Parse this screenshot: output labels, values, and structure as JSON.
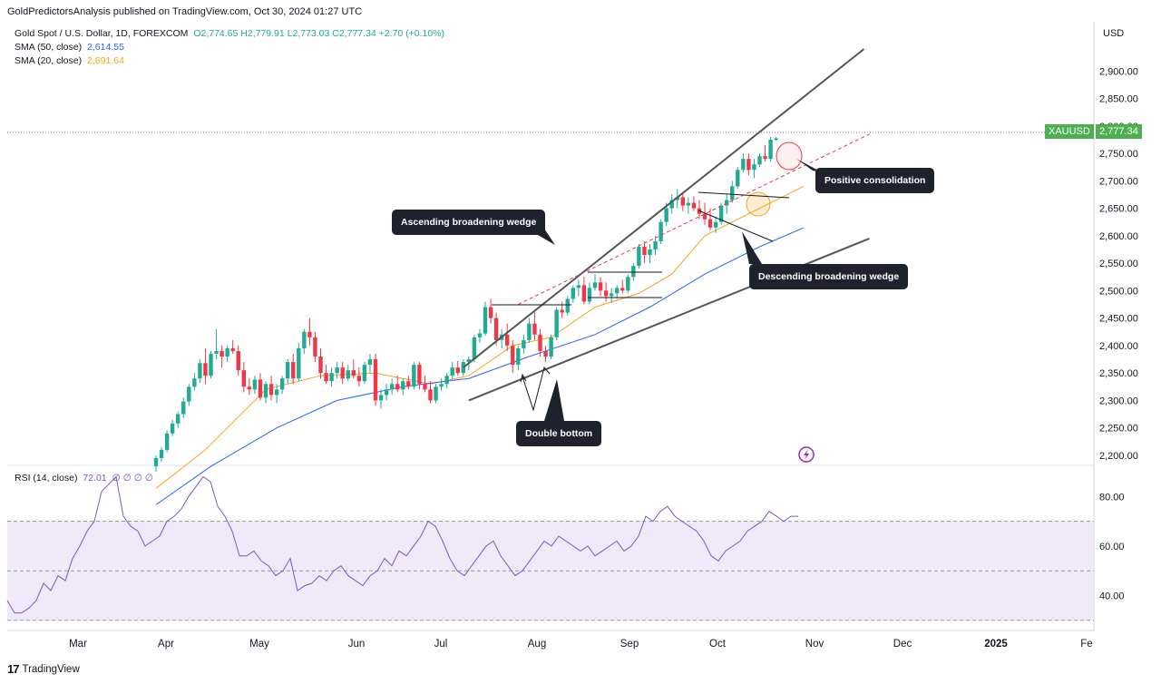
{
  "header": {
    "text": "GoldPredictorsAnalysis published on TradingView.com, Oct 30, 2024 01:27 UTC"
  },
  "legend": {
    "symbol": "Gold Spot / U.S. Dollar, 1D, FOREXCOM",
    "ohlc": "O2,774.65  H2,779.91  L2,773.03  C2,777.34  +2.70 (+0.10%)",
    "sma50_label": "SMA (50, close)",
    "sma50_value": "2,614.55",
    "sma20_label": "SMA (20, close)",
    "sma20_value": "2,691.64",
    "rsi_label": "RSI (14, close)",
    "rsi_value": "72.01",
    "rsi_extra": "∅ ∅ ∅ ∅"
  },
  "colors": {
    "up": "#22ab94",
    "down": "#f23645",
    "sma50": "#2962ff",
    "sma20": "#f7a21b",
    "rsi": "#7e57c2",
    "rsi_band": "#efe9f8",
    "badge": "#4caf50"
  },
  "axis": {
    "currency": "USD",
    "price_ticks": [
      "2,900.00",
      "2,850.00",
      "2,800.00",
      "2,750.00",
      "2,700.00",
      "2,650.00",
      "2,600.00",
      "2,550.00",
      "2,500.00",
      "2,450.00",
      "2,400.00",
      "2,350.00",
      "2,300.00",
      "2,250.00",
      "2,200.00"
    ],
    "rsi_ticks": [
      "80.00",
      "60.00",
      "40.00"
    ],
    "months": [
      "Mar",
      "Apr",
      "May",
      "Jun",
      "Jul",
      "Aug",
      "Sep",
      "Oct",
      "Nov",
      "Dec",
      "2025",
      "Fe"
    ]
  },
  "badges": {
    "symbol": "XAUUSD",
    "price": "2,777.34"
  },
  "annotations": {
    "ascending": "Ascending broadening wedge",
    "descending": "Descending broadening wedge",
    "positive": "Positive consolidation",
    "double_bottom": "Double bottom"
  },
  "footer": {
    "brand": "TradingView"
  },
  "chart_data": {
    "type": "candlestick",
    "symbol": "XAUUSD",
    "interval": "1D",
    "price_range": [
      2190,
      2960
    ],
    "rsi_range": [
      27,
      90
    ],
    "rsi_levels": [
      70,
      50,
      30
    ],
    "candles": [
      {
        "o": 2180,
        "h": 2200,
        "l": 2170,
        "c": 2195
      },
      {
        "o": 2195,
        "h": 2215,
        "l": 2188,
        "c": 2210
      },
      {
        "o": 2210,
        "h": 2245,
        "l": 2205,
        "c": 2240
      },
      {
        "o": 2240,
        "h": 2265,
        "l": 2235,
        "c": 2258
      },
      {
        "o": 2258,
        "h": 2280,
        "l": 2250,
        "c": 2275
      },
      {
        "o": 2275,
        "h": 2305,
        "l": 2268,
        "c": 2298
      },
      {
        "o": 2298,
        "h": 2330,
        "l": 2290,
        "c": 2325
      },
      {
        "o": 2325,
        "h": 2350,
        "l": 2318,
        "c": 2340
      },
      {
        "o": 2340,
        "h": 2375,
        "l": 2332,
        "c": 2368
      },
      {
        "o": 2368,
        "h": 2395,
        "l": 2330,
        "c": 2345
      },
      {
        "o": 2345,
        "h": 2390,
        "l": 2340,
        "c": 2385
      },
      {
        "o": 2385,
        "h": 2430,
        "l": 2375,
        "c": 2390
      },
      {
        "o": 2390,
        "h": 2400,
        "l": 2360,
        "c": 2380
      },
      {
        "o": 2380,
        "h": 2400,
        "l": 2370,
        "c": 2395
      },
      {
        "o": 2395,
        "h": 2410,
        "l": 2385,
        "c": 2390
      },
      {
        "o": 2390,
        "h": 2400,
        "l": 2345,
        "c": 2355
      },
      {
        "o": 2355,
        "h": 2370,
        "l": 2315,
        "c": 2325
      },
      {
        "o": 2325,
        "h": 2340,
        "l": 2310,
        "c": 2320
      },
      {
        "o": 2320,
        "h": 2345,
        "l": 2312,
        "c": 2338
      },
      {
        "o": 2338,
        "h": 2350,
        "l": 2300,
        "c": 2305
      },
      {
        "o": 2305,
        "h": 2335,
        "l": 2295,
        "c": 2330
      },
      {
        "o": 2330,
        "h": 2345,
        "l": 2300,
        "c": 2310
      },
      {
        "o": 2310,
        "h": 2330,
        "l": 2295,
        "c": 2320
      },
      {
        "o": 2320,
        "h": 2345,
        "l": 2312,
        "c": 2340
      },
      {
        "o": 2340,
        "h": 2375,
        "l": 2330,
        "c": 2370
      },
      {
        "o": 2370,
        "h": 2385,
        "l": 2330,
        "c": 2340
      },
      {
        "o": 2340,
        "h": 2405,
        "l": 2335,
        "c": 2395
      },
      {
        "o": 2395,
        "h": 2430,
        "l": 2385,
        "c": 2425
      },
      {
        "o": 2425,
        "h": 2450,
        "l": 2400,
        "c": 2415
      },
      {
        "o": 2415,
        "h": 2425,
        "l": 2370,
        "c": 2380
      },
      {
        "o": 2380,
        "h": 2395,
        "l": 2340,
        "c": 2350
      },
      {
        "o": 2350,
        "h": 2365,
        "l": 2330,
        "c": 2335
      },
      {
        "o": 2335,
        "h": 2360,
        "l": 2325,
        "c": 2350
      },
      {
        "o": 2350,
        "h": 2370,
        "l": 2340,
        "c": 2360
      },
      {
        "o": 2360,
        "h": 2370,
        "l": 2330,
        "c": 2340
      },
      {
        "o": 2340,
        "h": 2365,
        "l": 2335,
        "c": 2355
      },
      {
        "o": 2355,
        "h": 2375,
        "l": 2340,
        "c": 2345
      },
      {
        "o": 2345,
        "h": 2360,
        "l": 2325,
        "c": 2335
      },
      {
        "o": 2335,
        "h": 2370,
        "l": 2330,
        "c": 2365
      },
      {
        "o": 2365,
        "h": 2385,
        "l": 2350,
        "c": 2375
      },
      {
        "o": 2375,
        "h": 2385,
        "l": 2290,
        "c": 2300
      },
      {
        "o": 2300,
        "h": 2320,
        "l": 2285,
        "c": 2310
      },
      {
        "o": 2310,
        "h": 2330,
        "l": 2300,
        "c": 2320
      },
      {
        "o": 2320,
        "h": 2340,
        "l": 2310,
        "c": 2330
      },
      {
        "o": 2330,
        "h": 2345,
        "l": 2315,
        "c": 2320
      },
      {
        "o": 2320,
        "h": 2340,
        "l": 2310,
        "c": 2335
      },
      {
        "o": 2335,
        "h": 2345,
        "l": 2320,
        "c": 2325
      },
      {
        "o": 2325,
        "h": 2370,
        "l": 2320,
        "c": 2365
      },
      {
        "o": 2365,
        "h": 2370,
        "l": 2320,
        "c": 2330
      },
      {
        "o": 2330,
        "h": 2345,
        "l": 2315,
        "c": 2320
      },
      {
        "o": 2320,
        "h": 2335,
        "l": 2295,
        "c": 2300
      },
      {
        "o": 2300,
        "h": 2330,
        "l": 2295,
        "c": 2325
      },
      {
        "o": 2325,
        "h": 2340,
        "l": 2318,
        "c": 2330
      },
      {
        "o": 2330,
        "h": 2350,
        "l": 2322,
        "c": 2345
      },
      {
        "o": 2345,
        "h": 2370,
        "l": 2338,
        "c": 2360
      },
      {
        "o": 2360,
        "h": 2372,
        "l": 2345,
        "c": 2350
      },
      {
        "o": 2350,
        "h": 2375,
        "l": 2345,
        "c": 2370
      },
      {
        "o": 2370,
        "h": 2380,
        "l": 2355,
        "c": 2375
      },
      {
        "o": 2375,
        "h": 2420,
        "l": 2370,
        "c": 2415
      },
      {
        "o": 2415,
        "h": 2430,
        "l": 2405,
        "c": 2422
      },
      {
        "o": 2422,
        "h": 2480,
        "l": 2418,
        "c": 2470
      },
      {
        "o": 2470,
        "h": 2485,
        "l": 2440,
        "c": 2450
      },
      {
        "o": 2450,
        "h": 2460,
        "l": 2400,
        "c": 2410
      },
      {
        "o": 2410,
        "h": 2430,
        "l": 2395,
        "c": 2420
      },
      {
        "o": 2420,
        "h": 2440,
        "l": 2390,
        "c": 2400
      },
      {
        "o": 2400,
        "h": 2410,
        "l": 2350,
        "c": 2365
      },
      {
        "o": 2365,
        "h": 2400,
        "l": 2355,
        "c": 2395
      },
      {
        "o": 2395,
        "h": 2420,
        "l": 2385,
        "c": 2410
      },
      {
        "o": 2410,
        "h": 2450,
        "l": 2405,
        "c": 2440
      },
      {
        "o": 2440,
        "h": 2460,
        "l": 2410,
        "c": 2420
      },
      {
        "o": 2420,
        "h": 2430,
        "l": 2380,
        "c": 2390
      },
      {
        "o": 2390,
        "h": 2400,
        "l": 2370,
        "c": 2380
      },
      {
        "o": 2380,
        "h": 2420,
        "l": 2375,
        "c": 2415
      },
      {
        "o": 2415,
        "h": 2470,
        "l": 2410,
        "c": 2465
      },
      {
        "o": 2465,
        "h": 2480,
        "l": 2450,
        "c": 2460
      },
      {
        "o": 2460,
        "h": 2490,
        "l": 2455,
        "c": 2485
      },
      {
        "o": 2485,
        "h": 2510,
        "l": 2478,
        "c": 2505
      },
      {
        "o": 2505,
        "h": 2520,
        "l": 2490,
        "c": 2510
      },
      {
        "o": 2510,
        "h": 2525,
        "l": 2475,
        "c": 2480
      },
      {
        "o": 2480,
        "h": 2515,
        "l": 2475,
        "c": 2505
      },
      {
        "o": 2505,
        "h": 2530,
        "l": 2500,
        "c": 2515
      },
      {
        "o": 2515,
        "h": 2525,
        "l": 2490,
        "c": 2500
      },
      {
        "o": 2500,
        "h": 2515,
        "l": 2480,
        "c": 2490
      },
      {
        "o": 2490,
        "h": 2505,
        "l": 2478,
        "c": 2495
      },
      {
        "o": 2495,
        "h": 2510,
        "l": 2485,
        "c": 2505
      },
      {
        "o": 2505,
        "h": 2520,
        "l": 2495,
        "c": 2500
      },
      {
        "o": 2500,
        "h": 2530,
        "l": 2495,
        "c": 2525
      },
      {
        "o": 2525,
        "h": 2550,
        "l": 2518,
        "c": 2545
      },
      {
        "o": 2545,
        "h": 2585,
        "l": 2540,
        "c": 2580
      },
      {
        "o": 2580,
        "h": 2590,
        "l": 2550,
        "c": 2565
      },
      {
        "o": 2565,
        "h": 2585,
        "l": 2550,
        "c": 2575
      },
      {
        "o": 2575,
        "h": 2600,
        "l": 2565,
        "c": 2590
      },
      {
        "o": 2590,
        "h": 2630,
        "l": 2585,
        "c": 2625
      },
      {
        "o": 2625,
        "h": 2660,
        "l": 2618,
        "c": 2650
      },
      {
        "o": 2650,
        "h": 2675,
        "l": 2640,
        "c": 2665
      },
      {
        "o": 2665,
        "h": 2685,
        "l": 2650,
        "c": 2670
      },
      {
        "o": 2670,
        "h": 2680,
        "l": 2645,
        "c": 2655
      },
      {
        "o": 2655,
        "h": 2670,
        "l": 2640,
        "c": 2660
      },
      {
        "o": 2660,
        "h": 2672,
        "l": 2645,
        "c": 2650
      },
      {
        "o": 2650,
        "h": 2665,
        "l": 2630,
        "c": 2640
      },
      {
        "o": 2640,
        "h": 2660,
        "l": 2620,
        "c": 2630
      },
      {
        "o": 2630,
        "h": 2650,
        "l": 2610,
        "c": 2615
      },
      {
        "o": 2615,
        "h": 2635,
        "l": 2605,
        "c": 2625
      },
      {
        "o": 2625,
        "h": 2660,
        "l": 2620,
        "c": 2655
      },
      {
        "o": 2655,
        "h": 2675,
        "l": 2640,
        "c": 2665
      },
      {
        "o": 2665,
        "h": 2700,
        "l": 2660,
        "c": 2690
      },
      {
        "o": 2690,
        "h": 2725,
        "l": 2685,
        "c": 2720
      },
      {
        "o": 2720,
        "h": 2750,
        "l": 2715,
        "c": 2740
      },
      {
        "o": 2740,
        "h": 2750,
        "l": 2710,
        "c": 2720
      },
      {
        "o": 2720,
        "h": 2740,
        "l": 2705,
        "c": 2730
      },
      {
        "o": 2730,
        "h": 2750,
        "l": 2725,
        "c": 2745
      },
      {
        "o": 2745,
        "h": 2765,
        "l": 2735,
        "c": 2740
      },
      {
        "o": 2740,
        "h": 2780,
        "l": 2735,
        "c": 2775
      },
      {
        "o": 2774.65,
        "h": 2779.91,
        "l": 2773.03,
        "c": 2777.34
      }
    ],
    "sma20": [
      [
        0,
        2140
      ],
      [
        9,
        2210
      ],
      [
        20,
        2320
      ],
      [
        30,
        2345
      ],
      [
        40,
        2350
      ],
      [
        50,
        2330
      ],
      [
        57,
        2345
      ],
      [
        65,
        2400
      ],
      [
        72,
        2415
      ],
      [
        80,
        2470
      ],
      [
        88,
        2495
      ],
      [
        94,
        2530
      ],
      [
        100,
        2600
      ],
      [
        110,
        2650
      ],
      [
        118,
        2690
      ]
    ],
    "sma50": [
      [
        0,
        2110
      ],
      [
        10,
        2180
      ],
      [
        22,
        2250
      ],
      [
        33,
        2300
      ],
      [
        45,
        2325
      ],
      [
        57,
        2340
      ],
      [
        68,
        2380
      ],
      [
        80,
        2420
      ],
      [
        90,
        2470
      ],
      [
        100,
        2530
      ],
      [
        110,
        2580
      ],
      [
        118,
        2614.55
      ]
    ],
    "rsi": [
      38,
      33,
      33,
      35,
      38,
      45,
      42,
      48,
      46,
      55,
      60,
      66,
      70,
      82,
      85,
      88,
      72,
      68,
      66,
      60,
      62,
      64,
      70,
      72,
      75,
      80,
      84,
      88,
      86,
      76,
      72,
      66,
      56,
      56,
      58,
      54,
      52,
      48,
      50,
      55,
      42,
      44,
      45,
      48,
      46,
      50,
      52,
      48,
      46,
      44,
      48,
      50,
      55,
      52,
      58,
      56,
      60,
      64,
      70,
      68,
      62,
      55,
      50,
      48,
      52,
      56,
      60,
      62,
      56,
      52,
      48,
      50,
      54,
      58,
      62,
      60,
      64,
      62,
      60,
      58,
      60,
      56,
      58,
      60,
      62,
      58,
      60,
      64,
      72,
      70,
      74,
      76,
      72,
      70,
      68,
      66,
      62,
      56,
      54,
      58,
      60,
      62,
      66,
      68,
      70,
      74,
      72,
      70,
      72,
      72.01
    ],
    "trendlines": [
      {
        "label": "Ascending broadening wedge",
        "from": [
          56,
          2360
        ],
        "to": [
          129,
          2940
        ]
      },
      {
        "label": "support",
        "from": [
          57,
          2300
        ],
        "to": [
          130,
          2595
        ]
      },
      {
        "label": "resistance (dashed)",
        "from": [
          66,
          2475
        ],
        "to": [
          130,
          2785
        ]
      }
    ]
  }
}
